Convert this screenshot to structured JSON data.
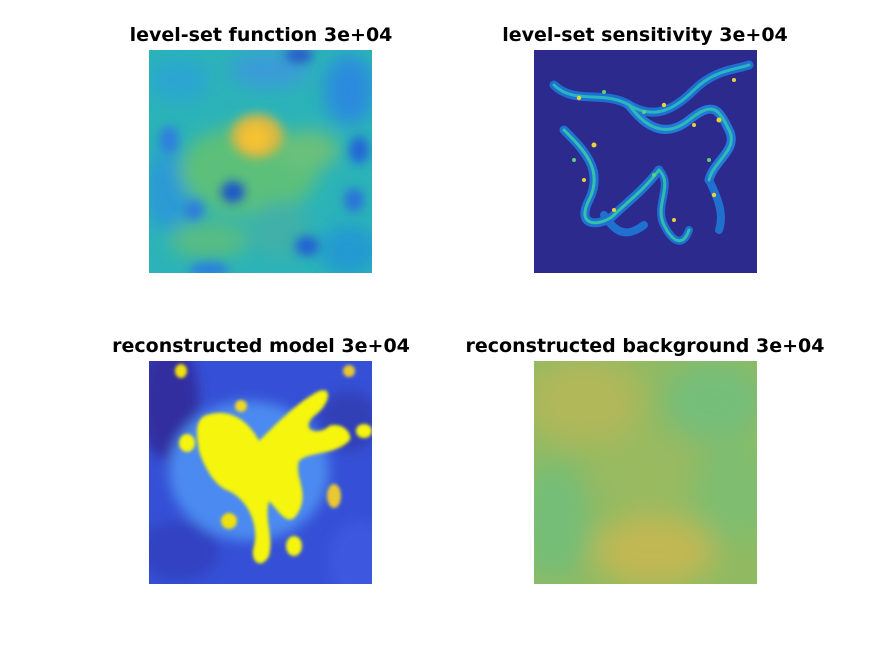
{
  "figure": {
    "panels": [
      {
        "title": "level-set function 3e+04"
      },
      {
        "title": "level-set sensitivity 3e+04"
      },
      {
        "title": "reconstructed model 3e+04"
      },
      {
        "title": "reconstructed background 3e+04"
      }
    ]
  }
}
